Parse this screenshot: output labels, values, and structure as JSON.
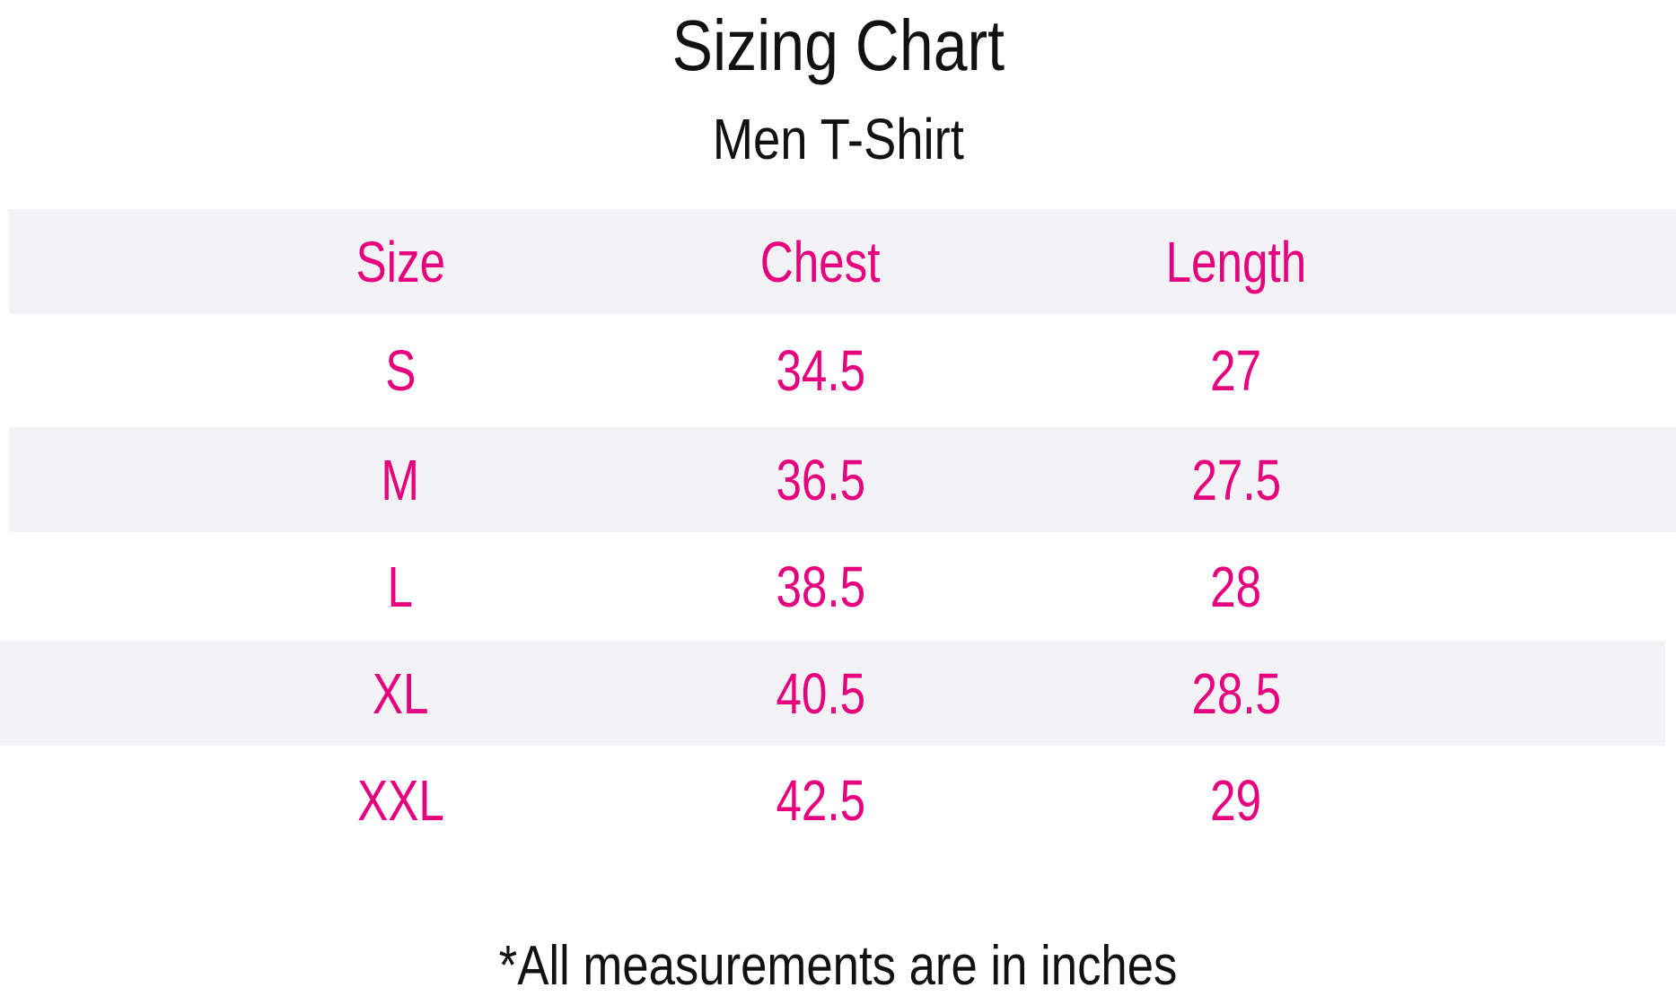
{
  "title": "Sizing Chart",
  "subtitle": "Men T-Shirt",
  "accent_color": "#e6007e",
  "table": {
    "headers": [
      "Size",
      "Chest",
      "Length"
    ],
    "rows": [
      [
        "S",
        "34.5",
        "27"
      ],
      [
        "M",
        "36.5",
        "27.5"
      ],
      [
        "L",
        "38.5",
        "28"
      ],
      [
        "XL",
        "40.5",
        "28.5"
      ],
      [
        "XXL",
        "42.5",
        "29"
      ]
    ]
  },
  "footer": "*All measurements are in inches"
}
